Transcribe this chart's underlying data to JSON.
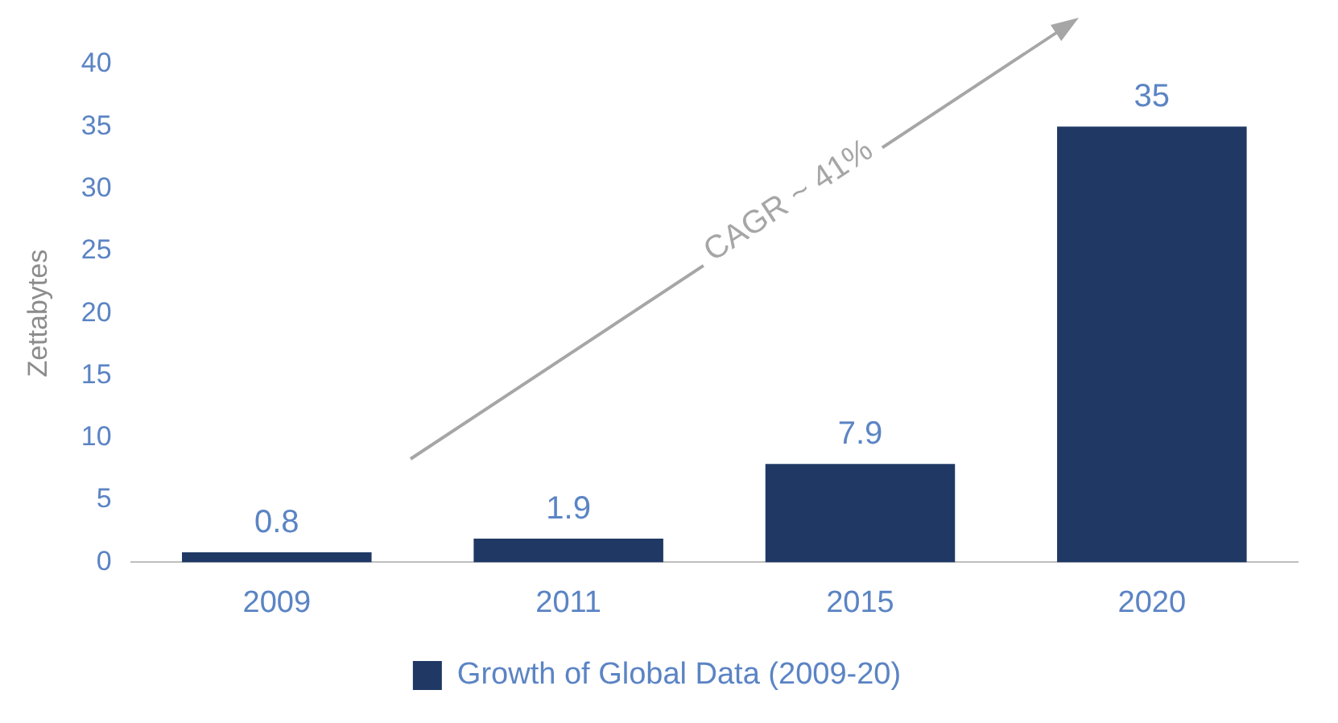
{
  "chart_data": {
    "type": "bar",
    "ylabel": "Zettabytes",
    "categories": [
      "2009",
      "2011",
      "2015",
      "2020"
    ],
    "series": [
      {
        "name": "Growth of Global Data (2009-20)",
        "color": "#1f3864",
        "values": [
          0.8,
          1.9,
          7.9,
          35
        ]
      }
    ],
    "ylim": [
      0,
      40
    ],
    "yticks": [
      0,
      5,
      10,
      15,
      20,
      25,
      30,
      35,
      40
    ],
    "grid": false,
    "legend": "bottom",
    "data_labels": true,
    "annotations": [
      "CAGR ~ 41%"
    ]
  }
}
